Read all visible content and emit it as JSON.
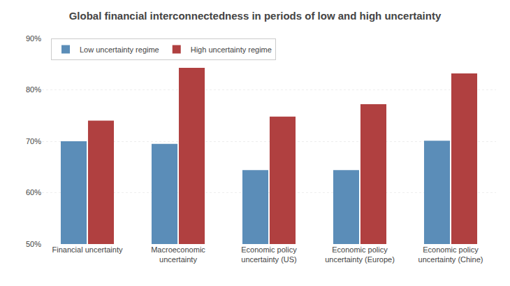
{
  "chart_data": {
    "type": "bar",
    "title": "Global financial interconnectedness in periods of low and high uncertainty",
    "categories": [
      "Financial uncertainty",
      "Macroeconomic\nuncertainty",
      "Economic policy\nuncertainty (US)",
      "Economic policy\nuncertainty (Europe)",
      "Economic policy\nuncertainty (Chine)"
    ],
    "series": [
      {
        "name": "Low uncertainty regime",
        "color": "#5b8db8",
        "values": [
          0.7,
          0.695,
          0.644,
          0.644,
          0.701
        ]
      },
      {
        "name": "High uncertainty regime",
        "color": "#b04040",
        "values": [
          0.74,
          0.843,
          0.748,
          0.772,
          0.832
        ]
      }
    ],
    "ylim": [
      0.5,
      0.9
    ],
    "yticks": [
      {
        "value": 0.5,
        "label": "50%"
      },
      {
        "value": 0.6,
        "label": "60%"
      },
      {
        "value": 0.7,
        "label": "70%"
      },
      {
        "value": 0.8,
        "label": "80%"
      },
      {
        "value": 0.9,
        "label": "90%"
      }
    ],
    "grid": true,
    "legend": "upper left"
  }
}
